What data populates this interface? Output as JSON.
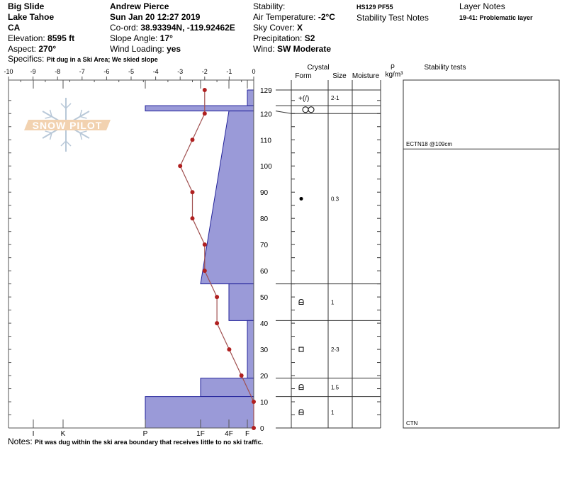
{
  "header": {
    "col1": {
      "name": "Big Slide",
      "area": "Lake Tahoe",
      "state": "CA",
      "elevation_label": "Elevation: ",
      "elevation": "8595 ft",
      "aspect_label": "Aspect: ",
      "aspect": "270°"
    },
    "col2": {
      "observer": "Andrew Pierce",
      "date": "Sun Jan 20 12:27 2019",
      "coord_label": "Co-ord: ",
      "coord": "38.93394N, -119.92462E",
      "slope_label": "Slope Angle: ",
      "slope": "17°",
      "wind_loading_label": "Wind Loading: ",
      "wind_loading": "yes"
    },
    "col3": {
      "stability_label": "Stability:",
      "air_temp_label": "Air Temperature: ",
      "air_temp": "-2°C",
      "sky_label": "Sky Cover: ",
      "sky": "X",
      "precip_label": "Precipitation: ",
      "precip": "S2",
      "wind_label": "Wind: ",
      "wind": "SW Moderate"
    },
    "col4": {
      "hs_pf": "HS129 PF55",
      "stability_test_notes_label": "Stability Test Notes"
    },
    "col5": {
      "layer_notes_label": "Layer Notes",
      "layer_note": "19-41: Problematic layer"
    },
    "specifics_label": "Specifics: ",
    "specifics": "Pit dug in a Ski Area; We skied slope",
    "notes_label": "Notes: ",
    "notes": "Pit was dug within the ski area boundary that receives little to no ski traffic."
  },
  "logo": {
    "text": "SNOW PILOT",
    "colors": {
      "snowflake": "#b8c8d8",
      "banner": "#f2d2b0"
    }
  },
  "columns": {
    "crystal": "Crystal",
    "form": "Form",
    "size": "Size",
    "moisture": "Moisture",
    "rho": "ρ",
    "density_unit": "kg/m³",
    "stability_tests": "Stability tests"
  },
  "chart_data": {
    "type": "snow-profile",
    "temperature_axis": {
      "range": [
        -10,
        0
      ],
      "ticks": [
        "-10",
        "-9",
        "-8",
        "-7",
        "-6",
        "-5",
        "-4",
        "-3",
        "-2",
        "-1",
        "0"
      ]
    },
    "depth_axis": {
      "range": [
        0,
        129
      ],
      "ticks": [
        "0",
        "10",
        "20",
        "30",
        "40",
        "50",
        "60",
        "70",
        "80",
        "90",
        "100",
        "110",
        "120",
        "129"
      ]
    },
    "hardness_axis": {
      "ticks": [
        "I",
        "K",
        "P",
        "1F",
        "4F",
        "F"
      ]
    },
    "temperature_profile": [
      {
        "depth": 129,
        "temp": -2
      },
      {
        "depth": 120,
        "temp": -2
      },
      {
        "depth": 110,
        "temp": -2.5
      },
      {
        "depth": 100,
        "temp": -3
      },
      {
        "depth": 90,
        "temp": -2.5
      },
      {
        "depth": 80,
        "temp": -2.5
      },
      {
        "depth": 70,
        "temp": -2
      },
      {
        "depth": 60,
        "temp": -2
      },
      {
        "depth": 50,
        "temp": -1.5
      },
      {
        "depth": 40,
        "temp": -1.5
      },
      {
        "depth": 30,
        "temp": -1
      },
      {
        "depth": 20,
        "temp": -0.5
      },
      {
        "depth": 10,
        "temp": 0
      },
      {
        "depth": 0,
        "temp": 0
      }
    ],
    "hardness_layers": [
      {
        "bottom": 123,
        "top": 129,
        "hardness_bottom": "F",
        "hardness_top": "F"
      },
      {
        "bottom": 121,
        "top": 123,
        "hardness_bottom": "P",
        "hardness_top": "P"
      },
      {
        "bottom": 55,
        "top": 121,
        "hardness_bottom": "1F",
        "hardness_top": "4F"
      },
      {
        "bottom": 41,
        "top": 55,
        "hardness_bottom": "4F",
        "hardness_top": "4F"
      },
      {
        "bottom": 19,
        "top": 41,
        "hardness_bottom": "F",
        "hardness_top": "F"
      },
      {
        "bottom": 12,
        "top": 19,
        "hardness_bottom": "1F",
        "hardness_top": "1F"
      },
      {
        "bottom": 0,
        "top": 12,
        "hardness_bottom": "P",
        "hardness_top": "P"
      }
    ],
    "crystal_layers": [
      {
        "bottom": 123,
        "top": 129,
        "form": "+(/)",
        "form_icon": "precip-decomposing",
        "size": "2-1"
      },
      {
        "bottom": 120,
        "top": 123,
        "form": "melt-freeze",
        "form_icon": "melt-freeze-icon",
        "size": ""
      },
      {
        "bottom": 55,
        "top": 120,
        "form": "●",
        "form_icon": "rounded-grains",
        "size": "0.3"
      },
      {
        "bottom": 41,
        "top": 55,
        "form": "faceted-rounded",
        "form_icon": "faceted-rounded-icon",
        "size": "1"
      },
      {
        "bottom": 19,
        "top": 41,
        "form": "□",
        "form_icon": "faceted-icon",
        "size": "2-3"
      },
      {
        "bottom": 12,
        "top": 19,
        "form": "faceted-rounded",
        "form_icon": "faceted-rounded-icon",
        "size": "1.5"
      },
      {
        "bottom": 0,
        "top": 12,
        "form": "faceted-rounded",
        "form_icon": "faceted-rounded-icon",
        "size": "1"
      }
    ],
    "stability_tests": [
      {
        "depth": 109,
        "label": "ECTN18 @109cm"
      },
      {
        "depth": 0,
        "label": "CTN"
      }
    ],
    "colors": {
      "hardness_fill": "#9a9ad8",
      "hardness_stroke": "#22229a",
      "temperature": "#b02020",
      "temperature_line": "#a05050"
    }
  }
}
